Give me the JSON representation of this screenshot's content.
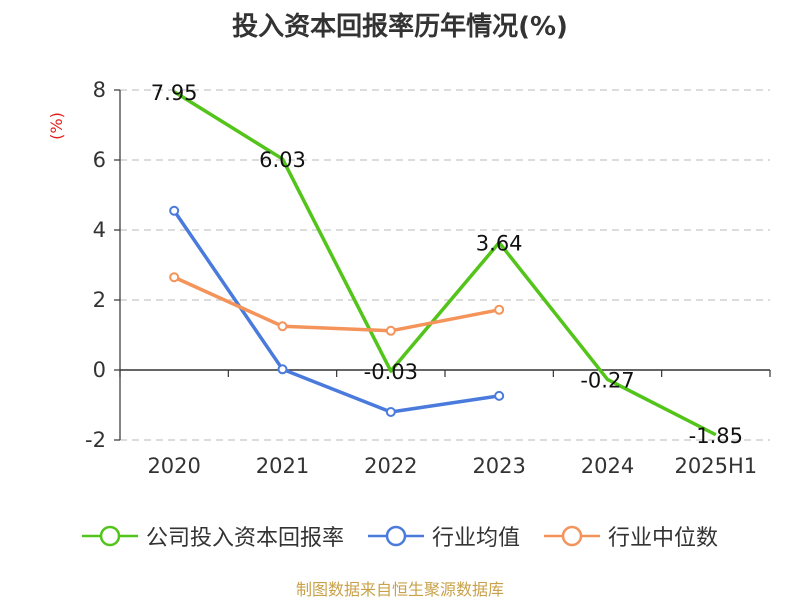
{
  "title": "投入资本回报率历年情况(%)",
  "source": "制图数据来自恒生聚源数据库",
  "chart_data": {
    "type": "line",
    "ylabel": "(%)",
    "categories": [
      "2020",
      "2021",
      "2022",
      "2023",
      "2024",
      "2025H1"
    ],
    "ylim": [
      -2,
      8
    ],
    "yticks": [
      -2,
      0,
      2,
      4,
      6,
      8
    ],
    "grid": true,
    "legend_position": "bottom",
    "series": [
      {
        "name": "公司投入资本回报率",
        "color": "#52c41a",
        "values": [
          7.95,
          6.03,
          -0.03,
          3.64,
          -0.27,
          -1.85
        ],
        "labels": [
          "7.95",
          "6.03",
          "-0.03",
          "3.64",
          "-0.27",
          "-1.85"
        ]
      },
      {
        "name": "行业均值",
        "color": "#4a7bdc",
        "values": [
          4.55,
          0.02,
          -1.2,
          -0.74,
          null,
          null
        ]
      },
      {
        "name": "行业中位数",
        "color": "#f4935a",
        "values": [
          2.65,
          1.25,
          1.12,
          1.72,
          null,
          null
        ]
      }
    ]
  }
}
